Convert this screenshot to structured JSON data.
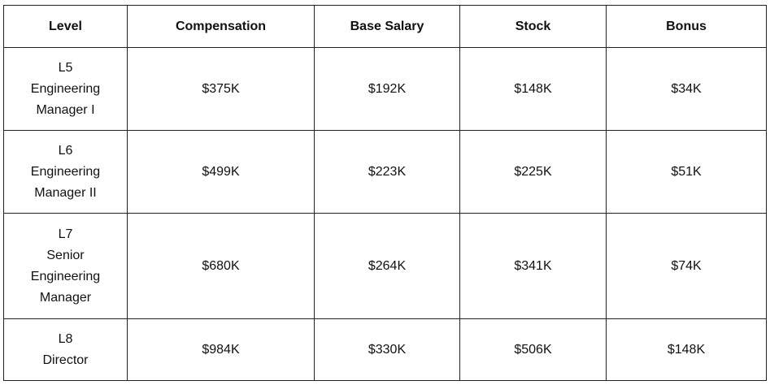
{
  "table": {
    "headers": [
      "Level",
      "Compensation",
      "Base Salary",
      "Stock",
      "Bonus"
    ],
    "rows": [
      {
        "level": [
          "L5",
          "Engineering",
          "Manager I"
        ],
        "cells": [
          "$375K",
          "$192K",
          "$148K",
          "$34K"
        ]
      },
      {
        "level": [
          "L6",
          "Engineering",
          "Manager II"
        ],
        "cells": [
          "$499K",
          "$223K",
          "$225K",
          "$51K"
        ]
      },
      {
        "level": [
          "L7",
          "Senior",
          "Engineering",
          "Manager"
        ],
        "cells": [
          "$680K",
          "$264K",
          "$341K",
          "$74K"
        ]
      },
      {
        "level": [
          "L8",
          "Director"
        ],
        "cells": [
          "$984K",
          "$330K",
          "$506K",
          "$148K"
        ]
      }
    ]
  }
}
